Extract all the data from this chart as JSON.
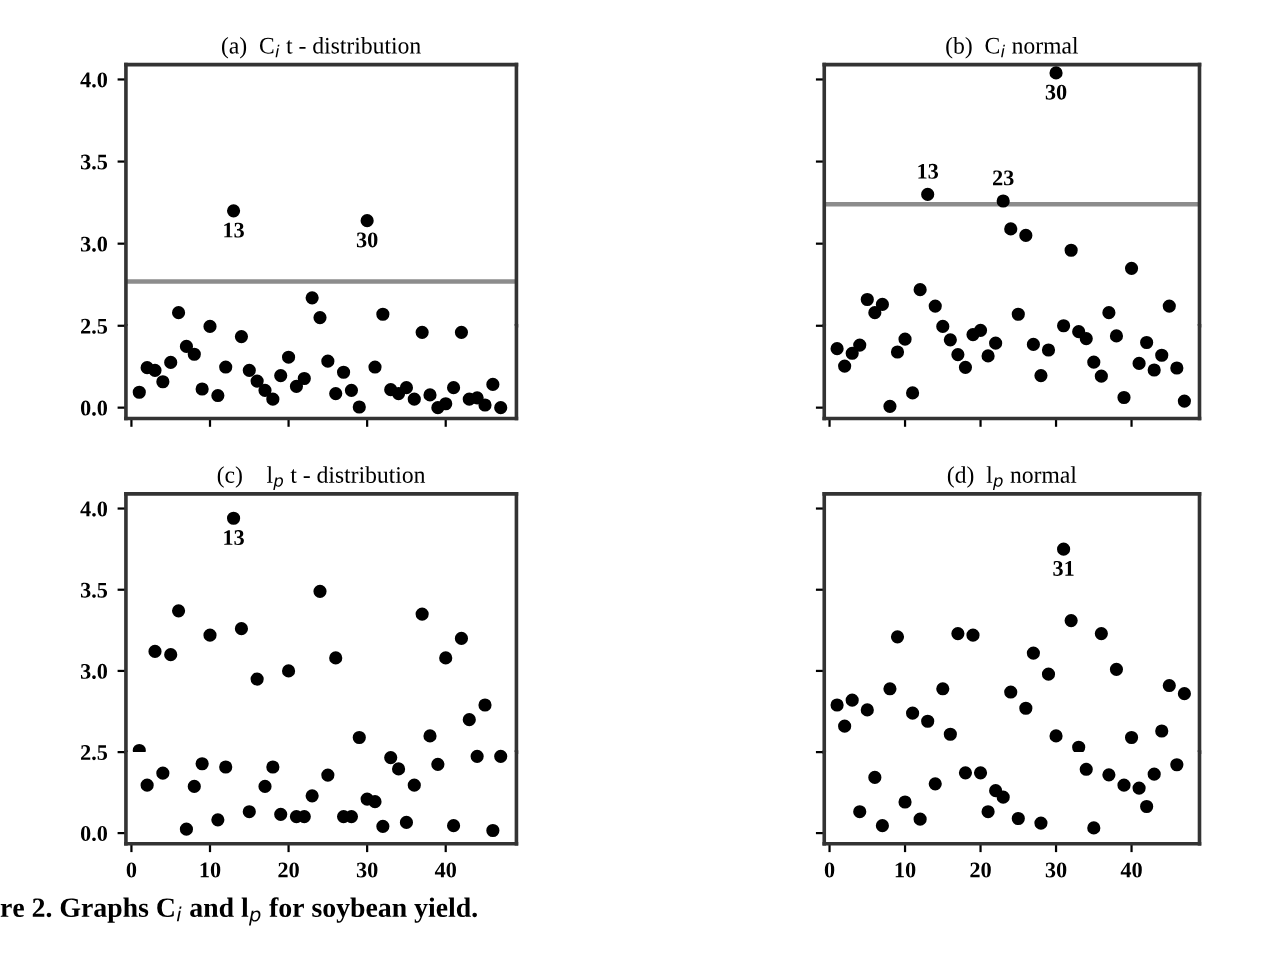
{
  "chart_data": [
    {
      "type": "scatter",
      "title": "(a)  C$_{i}$ t - distribution",
      "series": [
        {
          "color": "#000000",
          "x": [
            6,
            13,
            23,
            24,
            30,
            32
          ],
          "values": [
            2.58,
            3.2,
            2.67,
            2.55,
            3.14,
            2.57
          ]
        }
      ],
      "marker": "circle",
      "xlim": [
        -0.7,
        49
      ],
      "ylim": [
        2.5,
        4.09
      ],
      "yticks": [
        {
          "value": 3,
          "label": "3.0"
        },
        {
          "value": 3.5,
          "label": "3.5"
        },
        {
          "value": 4,
          "label": "4.0"
        }
      ],
      "tick_labels": "y",
      "ref_lines": [
        {
          "axis": "y",
          "value": 2.77,
          "color": "#8c8c8c"
        }
      ],
      "annotations": [
        {
          "text": "13",
          "x": 13,
          "y": 3.2
        },
        {
          "text": "30",
          "x": 30,
          "y": 3.14
        }
      ]
    },
    {
      "type": "scatter",
      "series": [
        {
          "color": "#000000",
          "x": [
            1,
            2,
            3,
            4,
            5,
            7,
            8,
            9,
            10,
            11,
            12,
            14,
            15,
            16,
            17,
            18,
            19,
            20,
            21,
            22,
            25,
            26,
            27,
            28,
            29,
            31,
            33,
            34,
            35,
            36,
            37,
            38,
            39,
            40,
            41,
            42,
            43,
            44,
            45,
            46,
            47
          ],
          "values": [
            0.47,
            1.22,
            1.14,
            0.79,
            1.38,
            1.87,
            1.63,
            0.57,
            2.48,
            0.37,
            1.24,
            2.17,
            1.14,
            0.81,
            0.53,
            0.26,
            0.98,
            1.54,
            0.65,
            0.89,
            1.42,
            0.43,
            1.08,
            0.53,
            0.02,
            1.24,
            0.55,
            0.43,
            0.61,
            0.26,
            2.3,
            0.39,
            0.0,
            0.12,
            0.61,
            2.3,
            0.26,
            0.3,
            0.08,
            0.71,
            0.0
          ]
        }
      ],
      "marker": "circle",
      "xlim": [
        -0.7,
        49
      ],
      "ylim": [
        -0.33,
        2.5
      ],
      "xticks": [
        0,
        10,
        20,
        30,
        40
      ],
      "yticks": [
        {
          "value": 0,
          "label": "0.0"
        },
        {
          "value": 2.5,
          "label": "2.5"
        }
      ],
      "tick_labels": "y"
    },
    {
      "type": "scatter",
      "title": "(b)  C$_{i}$ normal",
      "series": [
        {
          "color": "#000000",
          "x": [
            5,
            6,
            7,
            12,
            13,
            14,
            23,
            24,
            25,
            26,
            30,
            32,
            37,
            40,
            45
          ],
          "values": [
            2.66,
            2.58,
            2.63,
            2.72,
            3.3,
            2.62,
            3.26,
            3.09,
            2.57,
            3.05,
            4.04,
            2.96,
            2.58,
            2.85,
            2.62
          ]
        }
      ],
      "marker": "circle",
      "xlim": [
        -0.7,
        49
      ],
      "ylim": [
        2.5,
        4.09
      ],
      "yticks": [
        3,
        3.5,
        4
      ],
      "tick_labels": false,
      "ref_lines": [
        {
          "axis": "y",
          "value": 3.24,
          "color": "#8c8c8c"
        }
      ],
      "annotations": [
        {
          "text": "13",
          "x": 13,
          "y": 3.3
        },
        {
          "text": "23",
          "x": 23,
          "y": 3.26
        },
        {
          "text": "30",
          "x": 30,
          "y": 4.04
        }
      ]
    },
    {
      "type": "scatter",
      "series": [
        {
          "color": "#000000",
          "x": [
            1,
            2,
            3,
            4,
            8,
            9,
            10,
            11,
            15,
            16,
            17,
            18,
            19,
            20,
            21,
            22,
            27,
            28,
            29,
            31,
            33,
            34,
            35,
            36,
            38,
            39,
            41,
            42,
            43,
            44,
            46,
            47
          ],
          "values": [
            1.8,
            1.27,
            1.66,
            1.91,
            0.04,
            1.7,
            2.09,
            0.45,
            2.48,
            2.07,
            1.62,
            1.23,
            2.23,
            2.36,
            1.58,
            1.97,
            1.93,
            0.98,
            1.76,
            2.5,
            2.32,
            2.11,
            1.39,
            0.96,
            2.19,
            0.31,
            1.35,
            1.99,
            1.15,
            1.6,
            1.21,
            0.2
          ]
        }
      ],
      "marker": "circle",
      "xlim": [
        -0.7,
        49
      ],
      "ylim": [
        -0.33,
        2.5
      ],
      "xticks": [
        0,
        10,
        20,
        30,
        40
      ],
      "yticks": [
        0,
        2.5
      ],
      "tick_labels": false
    },
    {
      "type": "scatter",
      "title": "(c)    l$_{p}$ t - distribution",
      "series": [
        {
          "color": "#000000",
          "x": [
            1,
            3,
            5,
            6,
            10,
            13,
            14,
            16,
            20,
            24,
            26,
            29,
            37,
            38,
            40,
            42,
            43,
            45
          ],
          "values": [
            2.51,
            3.12,
            3.1,
            3.37,
            3.22,
            3.94,
            3.26,
            2.95,
            3.0,
            3.49,
            3.08,
            2.59,
            3.35,
            2.6,
            3.08,
            3.2,
            2.7,
            2.79
          ]
        }
      ],
      "marker": "circle",
      "xlim": [
        -0.7,
        49
      ],
      "ylim": [
        2.5,
        4.09
      ],
      "yticks": [
        {
          "value": 3,
          "label": "3.0"
        },
        {
          "value": 3.5,
          "label": "3.5"
        },
        {
          "value": 4,
          "label": "4.0"
        }
      ],
      "tick_labels": "y",
      "annotations": [
        {
          "text": "13",
          "x": 13,
          "y": 3.94
        }
      ]
    },
    {
      "type": "scatter",
      "series": [
        {
          "color": "#000000",
          "x": [
            2,
            4,
            7,
            8,
            9,
            11,
            12,
            15,
            17,
            18,
            19,
            21,
            22,
            23,
            25,
            27,
            28,
            30,
            31,
            32,
            33,
            34,
            35,
            36,
            39,
            41,
            44,
            46,
            47
          ],
          "values": [
            1.48,
            1.85,
            0.12,
            1.44,
            2.14,
            0.41,
            2.04,
            0.66,
            1.44,
            2.04,
            0.58,
            0.51,
            0.51,
            1.15,
            1.79,
            0.51,
            0.51,
            1.05,
            0.97,
            0.21,
            2.33,
            1.98,
            0.33,
            1.48,
            2.12,
            0.23,
            2.37,
            0.08,
            2.37
          ]
        }
      ],
      "marker": "circle",
      "xlim": [
        -0.7,
        49
      ],
      "ylim": [
        -0.33,
        2.5
      ],
      "xticks": [
        0,
        10,
        20,
        30,
        40
      ],
      "yticks": [
        {
          "value": 0,
          "label": "0.0"
        },
        {
          "value": 2.5,
          "label": "2.5"
        }
      ],
      "annotations": [
        "re 2. Graphs C$_{i}$ and l$_{p}$ for soybean yield."
      ]
    },
    {
      "type": "scatter",
      "title": "(d)  l$_{p}$ normal",
      "series": [
        {
          "color": "#000000",
          "x": [
            1,
            2,
            3,
            5,
            8,
            9,
            11,
            13,
            15,
            16,
            17,
            19,
            24,
            26,
            27,
            29,
            30,
            31,
            32,
            33,
            36,
            38,
            40,
            44,
            45,
            47
          ],
          "values": [
            2.79,
            2.66,
            2.82,
            2.76,
            2.89,
            3.21,
            2.74,
            2.69,
            2.89,
            2.61,
            3.23,
            3.22,
            2.87,
            2.77,
            3.11,
            2.98,
            2.6,
            3.75,
            3.31,
            2.53,
            3.23,
            3.01,
            2.59,
            2.63,
            2.91,
            2.86
          ]
        }
      ],
      "marker": "circle",
      "xlim": [
        -0.7,
        49
      ],
      "ylim": [
        2.5,
        4.09
      ],
      "yticks": [
        3,
        3.5,
        4
      ],
      "tick_labels": false,
      "annotations": [
        {
          "text": "31",
          "x": 31,
          "y": 3.75
        }
      ]
    },
    {
      "type": "scatter",
      "series": [
        {
          "color": "#000000",
          "x": [
            4,
            6,
            7,
            10,
            12,
            14,
            18,
            20,
            21,
            22,
            23,
            25,
            28,
            34,
            35,
            37,
            39,
            41,
            42,
            43,
            46
          ],
          "values": [
            0.66,
            1.72,
            0.23,
            0.96,
            0.43,
            1.52,
            1.86,
            1.86,
            0.66,
            1.31,
            1.11,
            0.45,
            0.31,
            1.97,
            0.16,
            1.8,
            1.48,
            1.39,
            0.82,
            1.82,
            2.11
          ]
        }
      ],
      "marker": "circle",
      "xlim": [
        -0.7,
        49
      ],
      "ylim": [
        -0.33,
        2.5
      ],
      "xticks": [
        0,
        10,
        20,
        30,
        40
      ],
      "yticks": [
        0,
        2.5
      ],
      "tick_labels": "x"
    }
  ]
}
